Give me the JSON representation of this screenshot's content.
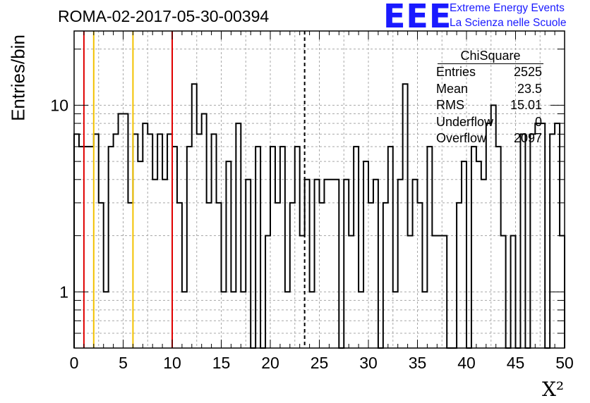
{
  "chart_data": {
    "type": "histogram",
    "title": "ROMA-02-2017-05-30-00394",
    "xlabel": "X²",
    "ylabel": "Entries/bin",
    "xlim": [
      0,
      50
    ],
    "ylim": [
      0.5,
      25
    ],
    "yscale": "log",
    "grid": true,
    "bin_width": 0.5,
    "x_ticks": [
      "0",
      "5",
      "10",
      "15",
      "20",
      "25",
      "30",
      "35",
      "40",
      "45",
      "50"
    ],
    "y_ticks": [
      "1",
      "10"
    ],
    "values": [
      7,
      6,
      6,
      6,
      7,
      3,
      1,
      6,
      7,
      9,
      9,
      3,
      7,
      5,
      8,
      7,
      4,
      7,
      4,
      7,
      6,
      3,
      1,
      6,
      13,
      7,
      9,
      3,
      7,
      3,
      1,
      5,
      1,
      8,
      1,
      4,
      0,
      6,
      0,
      2,
      6,
      3,
      6,
      1,
      3,
      6,
      2,
      4,
      1,
      4,
      3,
      4,
      4,
      4,
      0,
      4,
      2,
      6,
      1,
      5,
      3,
      4,
      0,
      3,
      6,
      1,
      4,
      13,
      2,
      4,
      3,
      1,
      6,
      2,
      2,
      2,
      0,
      0,
      3,
      5,
      0,
      6,
      5,
      4,
      8,
      10,
      6,
      2,
      0,
      2,
      0,
      7,
      0,
      7,
      8,
      8,
      0,
      7,
      8,
      2
    ],
    "vlines": [
      {
        "x": 1,
        "color": "#e00000",
        "style": "solid"
      },
      {
        "x": 2,
        "color": "#f2c200",
        "style": "solid"
      },
      {
        "x": 6,
        "color": "#f2c200",
        "style": "solid"
      },
      {
        "x": 10,
        "color": "#e00000",
        "style": "solid"
      },
      {
        "x": 23.5,
        "color": "#000000",
        "style": "dashed"
      }
    ]
  },
  "stats": {
    "title": "ChiSquare",
    "rows": [
      {
        "label": "Entries",
        "value": "2525"
      },
      {
        "label": "Mean",
        "value": "23.5"
      },
      {
        "label": "RMS",
        "value": "15.01"
      },
      {
        "label": "Underflow",
        "value": "0"
      },
      {
        "label": "Overflow",
        "value": "2097"
      }
    ]
  },
  "logo": {
    "mark": "EEE",
    "line1": "Extreme Energy Events",
    "line2": "La Scienza nelle Scuole",
    "color": "#1a1aff"
  }
}
